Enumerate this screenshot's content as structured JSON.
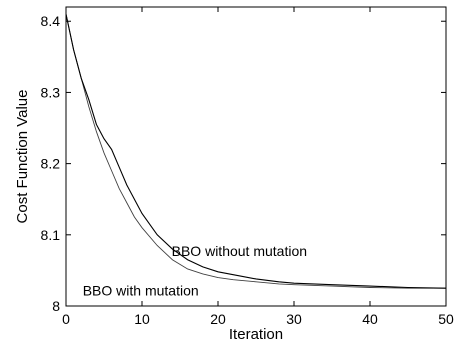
{
  "chart_data": {
    "type": "line",
    "xlabel": "Iteration",
    "ylabel": "Cost Function Value",
    "xlim": [
      0,
      50
    ],
    "ylim": [
      8.0,
      8.42
    ],
    "xticks": [
      0,
      10,
      20,
      30,
      40,
      50
    ],
    "yticks": [
      8.0,
      8.1,
      8.2,
      8.3,
      8.4
    ],
    "xtick_labels": [
      "0",
      "10",
      "20",
      "30",
      "40",
      "50"
    ],
    "ytick_labels": [
      "8",
      "8.1",
      "8.2",
      "8.3",
      "8.4"
    ],
    "grid": false,
    "series": [
      {
        "name": "BBO without mutation",
        "color": "#000000",
        "x": [
          0,
          1,
          2,
          3,
          4,
          5,
          6,
          7,
          8,
          9,
          10,
          12,
          14,
          16,
          18,
          20,
          22,
          25,
          28,
          30,
          35,
          40,
          45,
          50
        ],
        "y": [
          8.41,
          8.36,
          8.32,
          8.29,
          8.255,
          8.235,
          8.22,
          8.195,
          8.17,
          8.15,
          8.13,
          8.1,
          8.08,
          8.065,
          8.055,
          8.048,
          8.044,
          8.038,
          8.034,
          8.032,
          8.03,
          8.028,
          8.026,
          8.025
        ]
      },
      {
        "name": "BBO with mutation",
        "color": "#000000",
        "x": [
          0,
          1,
          2,
          3,
          4,
          5,
          6,
          7,
          8,
          9,
          10,
          12,
          14,
          16,
          18,
          20,
          22,
          25,
          28,
          30,
          35,
          40,
          45,
          50
        ],
        "y": [
          8.41,
          8.36,
          8.32,
          8.28,
          8.245,
          8.215,
          8.19,
          8.165,
          8.145,
          8.125,
          8.11,
          8.085,
          8.065,
          8.052,
          8.045,
          8.04,
          8.037,
          8.034,
          8.031,
          8.03,
          8.028,
          8.026,
          8.025,
          8.025
        ]
      }
    ],
    "annotations": [
      {
        "text": "BBO without mutation",
        "x": 13.9,
        "y": 8.07
      },
      {
        "text": "BBO with mutation",
        "x": 2.2,
        "y": 8.015
      }
    ]
  }
}
